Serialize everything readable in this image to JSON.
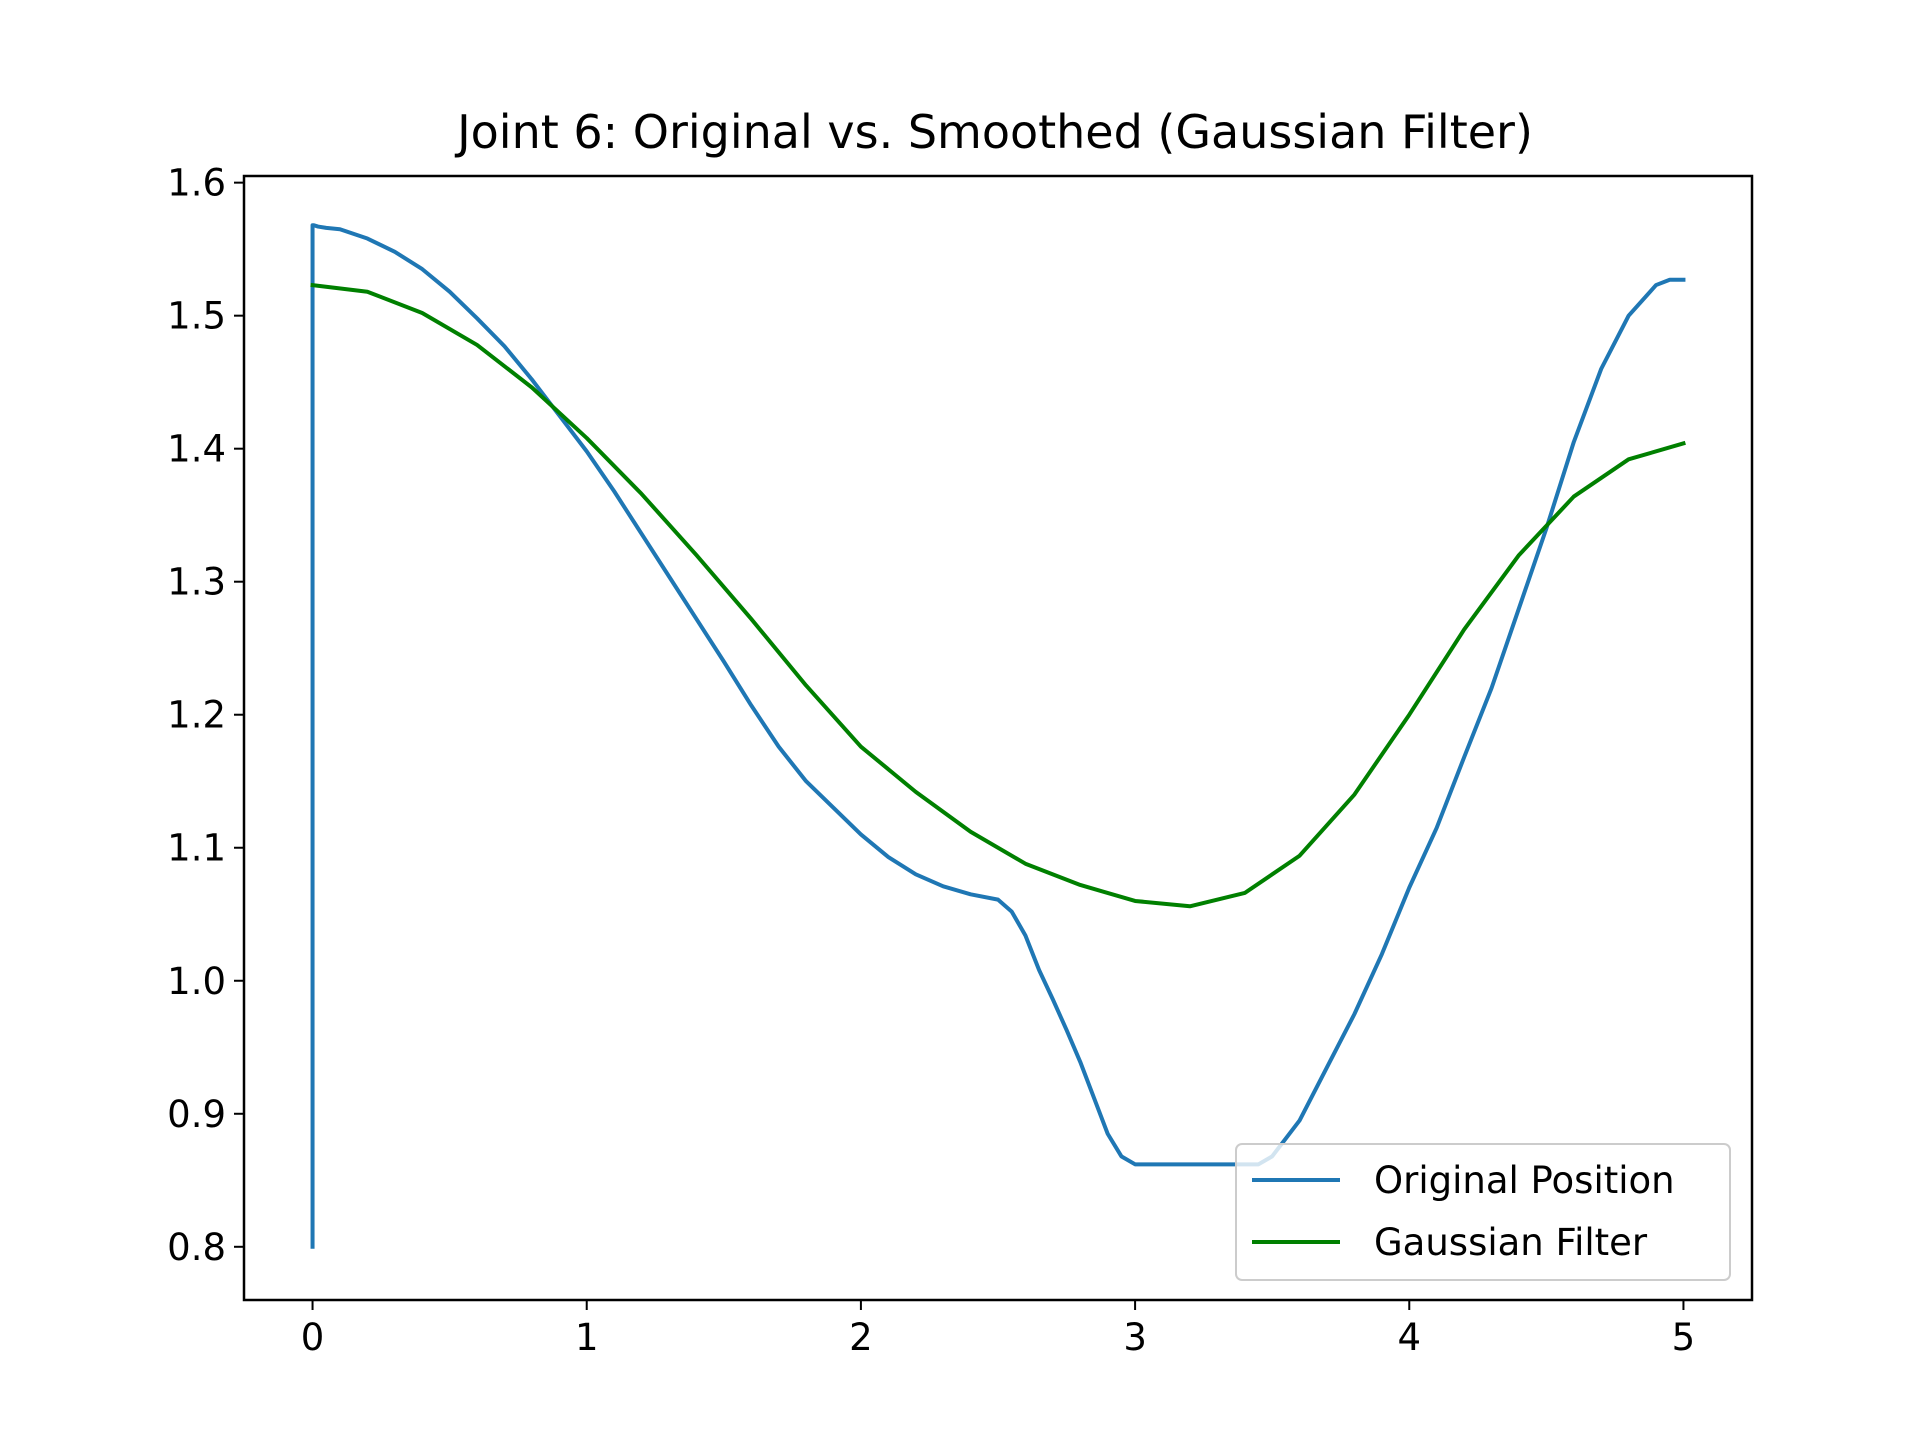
{
  "chart_data": {
    "type": "line",
    "title": "Joint 6: Original vs. Smoothed (Gaussian Filter)",
    "xlabel": "",
    "ylabel": "",
    "xlim": [
      -0.25,
      5.25
    ],
    "ylim": [
      0.76,
      1.605
    ],
    "x_ticks": [
      0,
      1,
      2,
      3,
      4,
      5
    ],
    "x_tick_labels": [
      "0",
      "1",
      "2",
      "3",
      "4",
      "5"
    ],
    "y_ticks": [
      0.8,
      0.9,
      1.0,
      1.1,
      1.2,
      1.3,
      1.4,
      1.5,
      1.6
    ],
    "y_tick_labels": [
      "0.8",
      "0.9",
      "1.0",
      "1.1",
      "1.2",
      "1.3",
      "1.4",
      "1.5",
      "1.6"
    ],
    "grid": false,
    "legend_position": "lower-right",
    "series": [
      {
        "name": "Original Position",
        "color": "#1f77b4",
        "x": [
          0,
          0.0,
          0.005,
          0.02,
          0.05,
          0.1,
          0.2,
          0.3,
          0.4,
          0.5,
          0.6,
          0.7,
          0.8,
          0.9,
          1.0,
          1.1,
          1.2,
          1.3,
          1.4,
          1.5,
          1.6,
          1.7,
          1.8,
          1.9,
          2.0,
          2.1,
          2.2,
          2.3,
          2.4,
          2.5,
          2.55,
          2.6,
          2.65,
          2.7,
          2.75,
          2.8,
          2.85,
          2.9,
          2.95,
          3.0,
          3.1,
          3.2,
          3.3,
          3.4,
          3.45,
          3.5,
          3.6,
          3.7,
          3.8,
          3.9,
          4.0,
          4.1,
          4.2,
          4.3,
          4.4,
          4.5,
          4.6,
          4.7,
          4.8,
          4.9,
          4.95,
          5.0
        ],
        "y": [
          0.8,
          1.568,
          1.568,
          1.567,
          1.566,
          1.565,
          1.558,
          1.548,
          1.535,
          1.518,
          1.498,
          1.477,
          1.452,
          1.425,
          1.398,
          1.368,
          1.336,
          1.304,
          1.272,
          1.24,
          1.207,
          1.176,
          1.15,
          1.13,
          1.11,
          1.093,
          1.08,
          1.071,
          1.065,
          1.061,
          1.052,
          1.034,
          1.008,
          0.986,
          0.963,
          0.939,
          0.912,
          0.885,
          0.868,
          0.862,
          0.862,
          0.862,
          0.862,
          0.862,
          0.862,
          0.868,
          0.895,
          0.935,
          0.975,
          1.02,
          1.07,
          1.115,
          1.168,
          1.22,
          1.28,
          1.34,
          1.405,
          1.46,
          1.5,
          1.523,
          1.527,
          1.527
        ]
      },
      {
        "name": "Gaussian Filter",
        "color": "#008000",
        "x": [
          0,
          0.2,
          0.4,
          0.6,
          0.8,
          1.0,
          1.2,
          1.4,
          1.6,
          1.8,
          2.0,
          2.2,
          2.4,
          2.6,
          2.8,
          3.0,
          3.2,
          3.4,
          3.6,
          3.8,
          4.0,
          4.2,
          4.4,
          4.6,
          4.8,
          5.0
        ],
        "y": [
          1.523,
          1.518,
          1.502,
          1.478,
          1.446,
          1.408,
          1.366,
          1.32,
          1.272,
          1.222,
          1.176,
          1.142,
          1.112,
          1.088,
          1.072,
          1.06,
          1.056,
          1.066,
          1.094,
          1.14,
          1.2,
          1.264,
          1.32,
          1.364,
          1.392,
          1.404
        ]
      }
    ]
  }
}
